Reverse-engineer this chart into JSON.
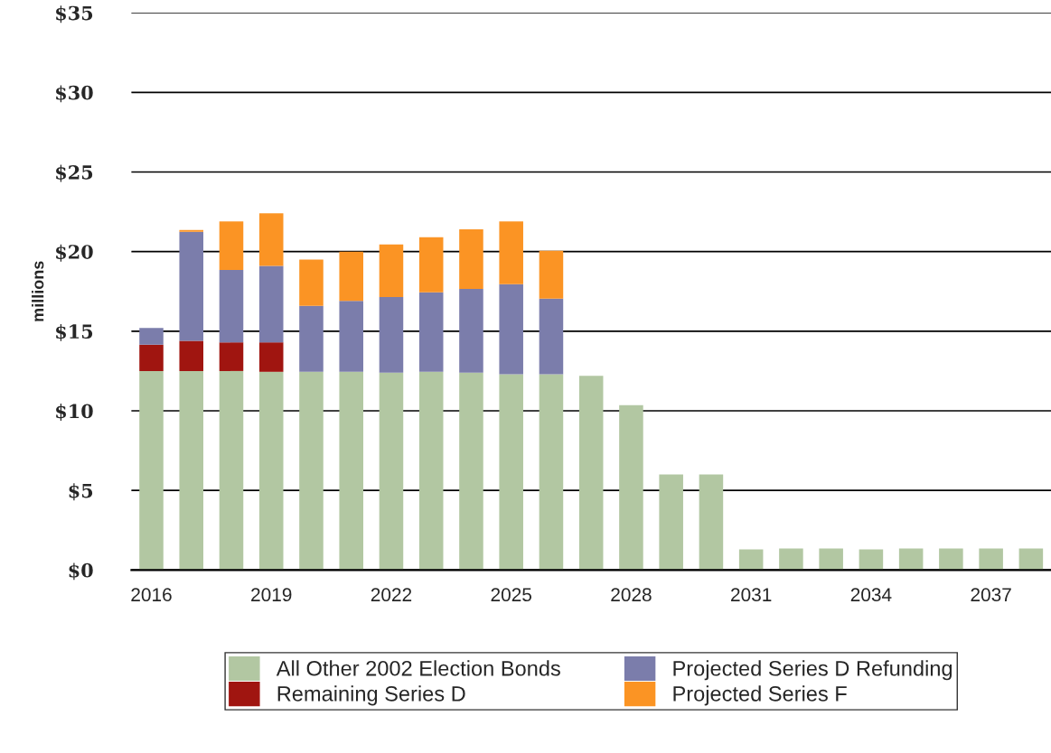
{
  "chart_data": {
    "type": "bar",
    "stacked": true,
    "ylabel": "millions",
    "categories": [
      "2016",
      null,
      null,
      "2019",
      null,
      null,
      "2022",
      null,
      null,
      "2025",
      null,
      null,
      "2028",
      null,
      null,
      "2031",
      null,
      null,
      "2034",
      null,
      null,
      "2037",
      null
    ],
    "series": [
      {
        "name": "All Other 2002 Election Bonds",
        "color": "#b2c7a2",
        "values": [
          12.5,
          12.5,
          12.5,
          12.45,
          12.45,
          12.45,
          12.4,
          12.45,
          12.4,
          12.3,
          12.3,
          12.2,
          10.35,
          6.0,
          6.0,
          1.3,
          1.35,
          1.35,
          1.3,
          1.35,
          1.35,
          1.35,
          1.35
        ]
      },
      {
        "name": "Remaining Series D",
        "color": "#a01510",
        "values": [
          1.65,
          1.9,
          1.8,
          1.85,
          null,
          null,
          null,
          null,
          null,
          null,
          null,
          null,
          null,
          null,
          null,
          null,
          null,
          null,
          null,
          null,
          null,
          null,
          null
        ]
      },
      {
        "name": "Projected Series D Refunding",
        "color": "#7b7dab",
        "values": [
          1.05,
          6.85,
          4.55,
          4.8,
          4.15,
          4.45,
          4.75,
          5.0,
          5.25,
          5.65,
          4.75,
          null,
          null,
          null,
          null,
          null,
          null,
          null,
          null,
          null,
          null,
          null,
          null
        ]
      },
      {
        "name": "Projected Series F",
        "color": "#fb9424",
        "values": [
          null,
          0.1,
          3.05,
          3.3,
          2.9,
          3.1,
          3.3,
          3.45,
          3.75,
          3.95,
          3.0,
          null,
          null,
          null,
          null,
          null,
          null,
          null,
          null,
          null,
          null,
          null,
          null
        ]
      }
    ],
    "ylim": [
      0,
      35
    ],
    "yticks": [
      {
        "value": 0,
        "label": "$0"
      },
      {
        "value": 5,
        "label": "$5"
      },
      {
        "value": 10,
        "label": "$10"
      },
      {
        "value": 15,
        "label": "$15"
      },
      {
        "value": 20,
        "label": "$20"
      },
      {
        "value": 25,
        "label": "$25"
      },
      {
        "value": 30,
        "label": "$30"
      },
      {
        "value": 35,
        "label": "$35"
      }
    ],
    "grid": "y",
    "legend": "bottom"
  }
}
